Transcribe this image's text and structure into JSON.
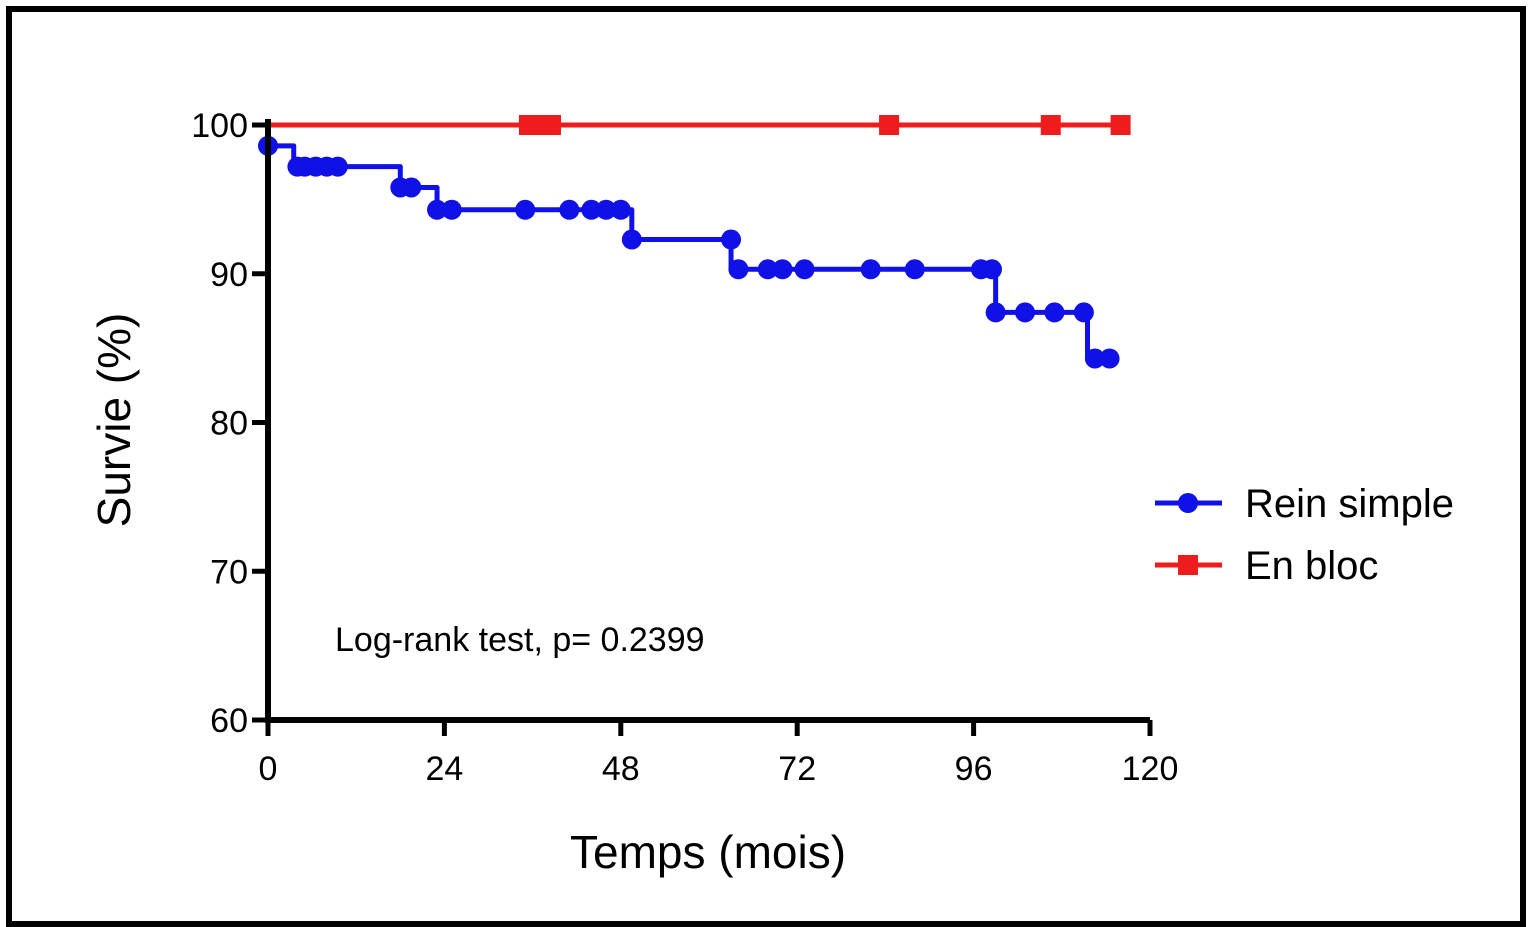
{
  "chart_data": {
    "type": "line",
    "xlabel": "Temps (mois)",
    "ylabel": "Survie (%)",
    "xlim": [
      0,
      120
    ],
    "ylim": [
      60,
      100
    ],
    "xticks": [
      0,
      24,
      48,
      72,
      96,
      120
    ],
    "yticks": [
      60,
      70,
      80,
      90,
      100
    ],
    "annotation": "Log-rank test, p= 0.2399",
    "grid": false,
    "legend_position": "right",
    "series": [
      {
        "name": "Rein simple",
        "color": "#1010e8",
        "marker": "circle",
        "steps": [
          [
            0,
            100
          ],
          [
            0,
            98.6
          ],
          [
            3.5,
            97.2
          ],
          [
            18,
            95.8
          ],
          [
            23,
            94.3
          ],
          [
            49.5,
            92.3
          ],
          [
            63,
            90.3
          ],
          [
            99,
            87.4
          ],
          [
            111.5,
            84.3
          ],
          [
            114.5,
            84.3
          ]
        ],
        "censored": [
          [
            0,
            98.6
          ],
          [
            4,
            97.2
          ],
          [
            5,
            97.2
          ],
          [
            6.5,
            97.2
          ],
          [
            8,
            97.2
          ],
          [
            9.5,
            97.2
          ],
          [
            18,
            95.8
          ],
          [
            19.5,
            95.8
          ],
          [
            23,
            94.3
          ],
          [
            25,
            94.3
          ],
          [
            35,
            94.3
          ],
          [
            41,
            94.3
          ],
          [
            44,
            94.3
          ],
          [
            46,
            94.3
          ],
          [
            48,
            94.3
          ],
          [
            49.5,
            92.3
          ],
          [
            63,
            92.3
          ],
          [
            64,
            90.3
          ],
          [
            68,
            90.3
          ],
          [
            70,
            90.3
          ],
          [
            73,
            90.3
          ],
          [
            82,
            90.3
          ],
          [
            88,
            90.3
          ],
          [
            97,
            90.3
          ],
          [
            98.5,
            90.3
          ],
          [
            99,
            87.4
          ],
          [
            103,
            87.4
          ],
          [
            107,
            87.4
          ],
          [
            111,
            87.4
          ],
          [
            112.5,
            84.3
          ],
          [
            114.5,
            84.3
          ]
        ]
      },
      {
        "name": "En bloc",
        "color": "#ee1c1c",
        "marker": "square",
        "steps": [
          [
            0,
            100
          ],
          [
            116,
            100
          ]
        ],
        "censored": [
          [
            35.5,
            100
          ],
          [
            37,
            100
          ],
          [
            38.5,
            100
          ],
          [
            84.5,
            100
          ],
          [
            106.5,
            100
          ],
          [
            116,
            100
          ]
        ]
      }
    ]
  }
}
